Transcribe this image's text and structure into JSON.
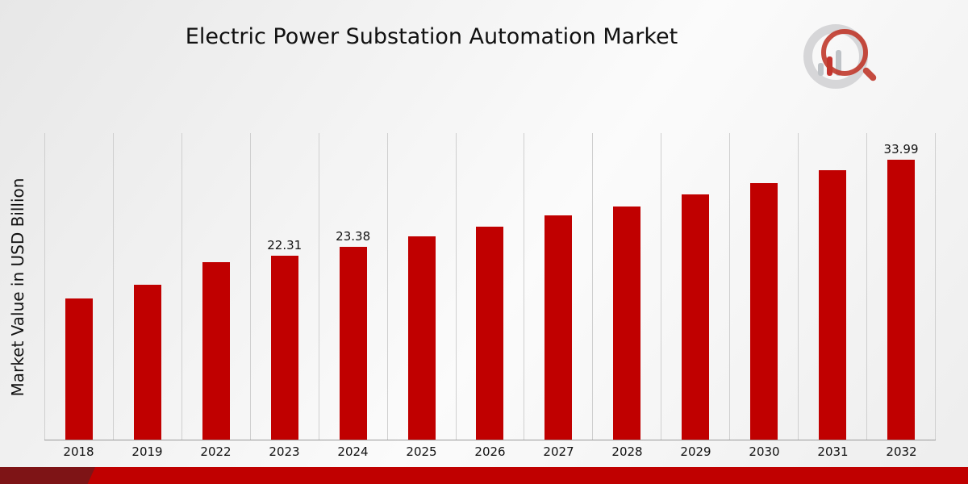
{
  "title": "Electric Power Substation Automation Market",
  "colors": {
    "bar": "#C00000",
    "footer_main": "#C00000",
    "footer_dark": "#7E1416",
    "gridline": "#cfcfcf"
  },
  "icons": {
    "logo": "magnifier-bar-chart-logo"
  },
  "chart_data": {
    "type": "bar",
    "title": "Electric Power Substation Automation Market",
    "xlabel": "",
    "ylabel": "Market Value in USD Billion",
    "categories": [
      "2018",
      "2019",
      "2022",
      "2023",
      "2024",
      "2025",
      "2026",
      "2027",
      "2028",
      "2029",
      "2030",
      "2031",
      "2032"
    ],
    "values": [
      17.1,
      18.8,
      21.5,
      22.31,
      23.38,
      24.7,
      25.8,
      27.2,
      28.3,
      29.8,
      31.1,
      32.7,
      33.99
    ],
    "data_labels": [
      "",
      "",
      "",
      "22.31",
      "23.38",
      "",
      "",
      "",
      "",
      "",
      "",
      "",
      "33.99"
    ],
    "ylim": [
      0,
      37.2
    ],
    "grid": "vertical",
    "legend": "none",
    "bar_color": "#C00000"
  }
}
